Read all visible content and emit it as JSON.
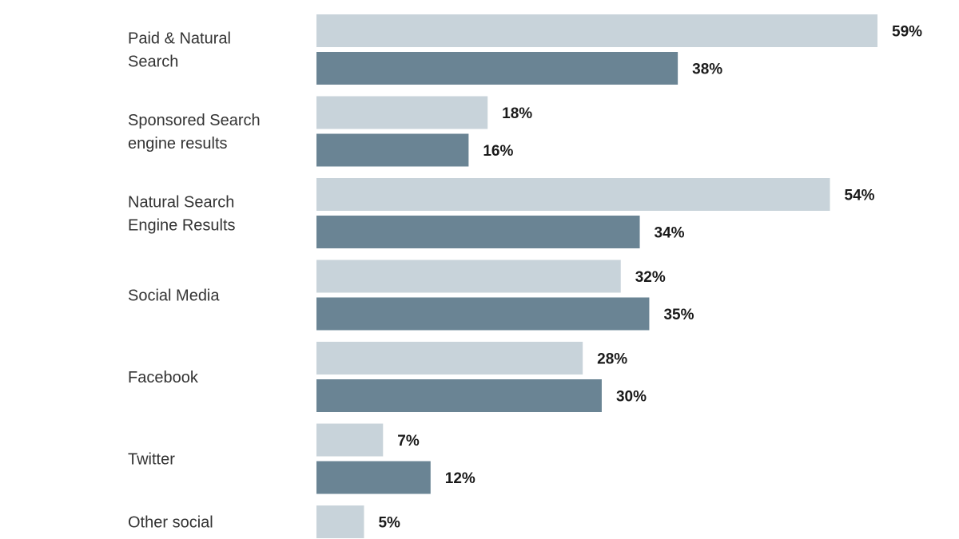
{
  "chart_data": {
    "type": "bar",
    "orientation": "horizontal",
    "categories": [
      [
        "Paid & Natural",
        "Search"
      ],
      [
        "Sponsored Search",
        "engine results"
      ],
      [
        "Natural Search",
        "Engine Results"
      ],
      [
        "Social Media"
      ],
      [
        "Facebook"
      ],
      [
        "Twitter"
      ],
      [
        "Other social"
      ]
    ],
    "series": [
      {
        "values": [
          59,
          18,
          54,
          32,
          28,
          7,
          5
        ],
        "labels": [
          "59%",
          "18%",
          "54%",
          "32%",
          "28%",
          "7%",
          "5%"
        ],
        "color": "#c8d3da"
      },
      {
        "values": [
          38,
          16,
          34,
          35,
          30,
          12,
          null
        ],
        "labels": [
          "38%",
          "16%",
          "34%",
          "35%",
          "30%",
          "12%",
          null
        ],
        "color": "#6a8494"
      }
    ],
    "xlim": [
      0,
      59
    ],
    "grid": false,
    "legend": "none"
  }
}
